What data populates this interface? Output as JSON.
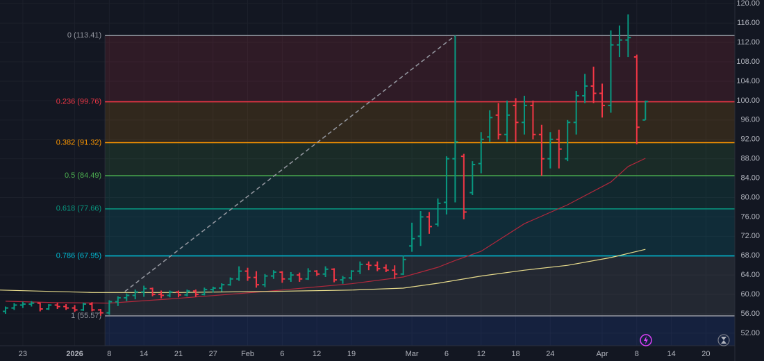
{
  "chart_data": {
    "type": "ohlc",
    "xlim": [
      -0.64,
      84.34
    ],
    "ylim": [
      49.41,
      120.76
    ],
    "grid": true,
    "up_color": "#089981",
    "down_color": "#f23645",
    "xticks": [
      {
        "value": 2,
        "label": "23"
      },
      {
        "value": 8,
        "label": "2026"
      },
      {
        "value": 12,
        "label": "8"
      },
      {
        "value": 16,
        "label": "14"
      },
      {
        "value": 20,
        "label": "21"
      },
      {
        "value": 24,
        "label": "27"
      },
      {
        "value": 28,
        "label": "Feb"
      },
      {
        "value": 32,
        "label": "6"
      },
      {
        "value": 36,
        "label": "12"
      },
      {
        "value": 40,
        "label": "19"
      },
      {
        "value": 47,
        "label": "Mar"
      },
      {
        "value": 51,
        "label": "6"
      },
      {
        "value": 55,
        "label": "12"
      },
      {
        "value": 59,
        "label": "18"
      },
      {
        "value": 63,
        "label": "24"
      },
      {
        "value": 69,
        "label": "Apr"
      },
      {
        "value": 73,
        "label": "8"
      },
      {
        "value": 77,
        "label": "14"
      },
      {
        "value": 81,
        "label": "20"
      }
    ],
    "yticks": [
      {
        "value": 52,
        "label": "52.00"
      },
      {
        "value": 56,
        "label": "56.00"
      },
      {
        "value": 60,
        "label": "60.00"
      },
      {
        "value": 64,
        "label": "64.00"
      },
      {
        "value": 68,
        "label": "68.00"
      },
      {
        "value": 72,
        "label": "72.00"
      },
      {
        "value": 76,
        "label": "76.00"
      },
      {
        "value": 80,
        "label": "80.00"
      },
      {
        "value": 84,
        "label": "84.00"
      },
      {
        "value": 88,
        "label": "88.00"
      },
      {
        "value": 92,
        "label": "92.00"
      },
      {
        "value": 96,
        "label": "96.00"
      },
      {
        "value": 100,
        "label": "100.00"
      },
      {
        "value": 104,
        "label": "104.00"
      },
      {
        "value": 108,
        "label": "108.00"
      },
      {
        "value": 112,
        "label": "112.00"
      },
      {
        "value": 116,
        "label": "116.00"
      },
      {
        "value": 120,
        "label": "120.00"
      }
    ],
    "open": [
      56.5,
      57.2,
      57.8,
      58.0,
      58.2,
      57.0,
      57.8,
      57.5,
      57.2,
      56.8,
      58.0,
      56.8,
      56.2,
      58.5,
      59.3,
      59.8,
      60.5,
      61.2,
      60.0,
      59.8,
      60.5,
      59.9,
      60.7,
      60.0,
      61.0,
      61.3,
      62.0,
      63.2,
      64.8,
      63.5,
      62.0,
      63.8,
      64.6,
      63.2,
      64.0,
      63.2,
      64.8,
      64.2,
      65.2,
      63.0,
      63.4,
      64.8,
      66.2,
      66.0,
      65.5,
      65.0,
      64.2,
      70.0,
      72.0,
      76.0,
      74.5,
      79.0,
      88.0,
      88.5,
      81.0,
      87.0,
      92.5,
      97.0,
      93.0,
      99.0,
      95.5,
      99.0,
      93.0,
      88.0,
      92.0,
      88.0,
      95.5,
      101.0,
      103.0,
      101.5,
      99.0,
      111.5,
      112.5,
      109.0,
      96.0
    ],
    "high": [
      57.5,
      58.2,
      58.5,
      58.6,
      58.3,
      58.0,
      58.3,
      58.0,
      57.8,
      58.3,
      58.4,
      57.0,
      58.8,
      59.6,
      60.2,
      61.0,
      61.8,
      61.4,
      60.8,
      60.8,
      60.8,
      61.0,
      61.0,
      61.4,
      61.6,
      62.3,
      63.5,
      65.8,
      65.5,
      64.8,
      64.2,
      65.0,
      64.8,
      64.6,
      64.5,
      65.4,
      65.0,
      65.8,
      65.4,
      63.8,
      65.0,
      66.8,
      66.8,
      66.8,
      66.2,
      66.0,
      68.0,
      74.8,
      77.2,
      77.0,
      79.8,
      88.5,
      113.41,
      89.0,
      87.5,
      93.5,
      98.0,
      99.5,
      100.0,
      100.5,
      101.0,
      100.0,
      95.0,
      93.5,
      94.0,
      96.0,
      102.0,
      105.5,
      107.0,
      103.5,
      114.5,
      115.5,
      117.8,
      109.5,
      100.0
    ],
    "low": [
      56.0,
      56.8,
      57.2,
      57.5,
      56.5,
      56.8,
      57.0,
      56.8,
      56.4,
      56.6,
      56.5,
      55.6,
      55.8,
      57.6,
      58.6,
      59.0,
      59.5,
      59.6,
      59.2,
      59.4,
      59.4,
      59.6,
      59.5,
      59.8,
      60.4,
      60.6,
      61.8,
      62.8,
      62.8,
      61.4,
      61.5,
      63.2,
      62.4,
      62.6,
      62.6,
      63.0,
      63.8,
      63.6,
      62.5,
      62.2,
      63.0,
      64.2,
      65.0,
      64.8,
      64.6,
      63.2,
      64.0,
      68.8,
      70.0,
      72.5,
      74.0,
      76.5,
      79.0,
      75.5,
      80.5,
      85.0,
      91.5,
      92.0,
      91.5,
      91.5,
      93.0,
      92.0,
      84.5,
      86.0,
      86.0,
      87.5,
      93.0,
      99.5,
      99.5,
      96.5,
      97.5,
      109.0,
      109.0,
      91.0,
      96.0
    ],
    "close": [
      57.2,
      57.8,
      58.0,
      58.2,
      57.0,
      57.8,
      57.5,
      57.2,
      56.8,
      58.0,
      56.8,
      56.2,
      58.5,
      59.3,
      59.8,
      60.5,
      61.2,
      60.0,
      59.8,
      60.5,
      59.9,
      60.7,
      60.0,
      61.0,
      61.3,
      62.0,
      63.2,
      64.8,
      63.5,
      62.0,
      63.8,
      64.6,
      63.2,
      64.0,
      63.2,
      64.8,
      64.2,
      65.2,
      63.0,
      63.4,
      64.8,
      66.2,
      66.0,
      65.3,
      65.0,
      64.2,
      67.2,
      71.5,
      76.0,
      74.0,
      78.8,
      88.0,
      91.5,
      77.0,
      86.8,
      92.0,
      96.5,
      93.0,
      97.0,
      95.5,
      99.0,
      93.0,
      88.0,
      92.0,
      90.0,
      95.5,
      101.0,
      103.0,
      101.5,
      99.0,
      111.5,
      112.5,
      113.0,
      94.5,
      99.8
    ],
    "moving_averages": [
      {
        "color": "#b2283c",
        "x": [
          0,
          6,
          12,
          20,
          30,
          40,
          46,
          50,
          52,
          55,
          60,
          65,
          70,
          72,
          74
        ],
        "values": [
          58.6,
          58.3,
          58.2,
          59.2,
          60.6,
          62.2,
          63.6,
          65.6,
          67.0,
          68.9,
          74.6,
          78.5,
          83.2,
          86.4,
          88.1
        ]
      },
      {
        "color": "#e8dc8c",
        "x": [
          -0.64,
          10,
          20,
          30,
          40,
          46,
          50,
          55,
          60,
          65,
          70,
          74
        ],
        "values": [
          60.9,
          60.4,
          60.4,
          60.6,
          60.9,
          61.3,
          62.3,
          63.8,
          65.0,
          66.0,
          67.6,
          69.3
        ]
      }
    ],
    "trend_line": {
      "color": "#9598a1",
      "x": [
        13.8,
        52
      ],
      "values": [
        60.6,
        113.41
      ]
    },
    "fib": {
      "x_start": 11.5,
      "levels": [
        {
          "value": 113.41,
          "label": "0 (113.41)",
          "color": "#9598a1"
        },
        {
          "value": 99.76,
          "label": "0.236 (99.76)",
          "color": "#f23645"
        },
        {
          "value": 91.32,
          "label": "0.382 (91.32)",
          "color": "#ff9800"
        },
        {
          "value": 84.49,
          "label": "0.5 (84.49)",
          "color": "#4caf50"
        },
        {
          "value": 77.66,
          "label": "0.618 (77.66)",
          "color": "#089981"
        },
        {
          "value": 67.95,
          "label": "0.786 (67.95)",
          "color": "#00bcd4"
        },
        {
          "value": 55.57,
          "label": "1 (55.57)",
          "color": "#9598a1"
        }
      ]
    }
  }
}
